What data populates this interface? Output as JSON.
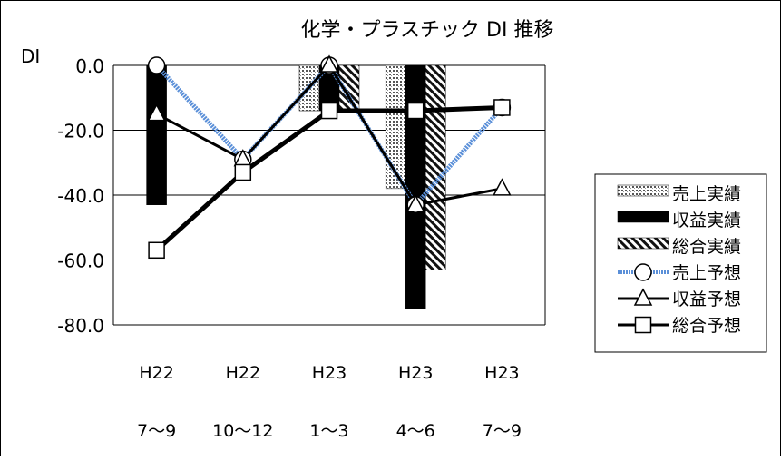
{
  "chart_data": {
    "type": "bar",
    "title": "化学・プラスチック DI 推移",
    "ylabel": "DI",
    "ylim": [
      -80,
      0
    ],
    "yticks": [
      0,
      -20,
      -40,
      -60,
      -80
    ],
    "ytick_labels": [
      "0.0",
      "-20.0",
      "-40.0",
      "-60.0",
      "-80.0"
    ],
    "grid": true,
    "legend_position": "right",
    "categories": [
      {
        "top": "H22",
        "bottom": "7～9"
      },
      {
        "top": "H22",
        "bottom": "10～12"
      },
      {
        "top": "H23",
        "bottom": "1～3"
      },
      {
        "top": "H23",
        "bottom": "4～6"
      },
      {
        "top": "H23",
        "bottom": "7～9"
      }
    ],
    "bar_series": [
      {
        "name": "売上実績",
        "pattern": "dots",
        "values": [
          null,
          null,
          -14,
          -38,
          null
        ]
      },
      {
        "name": "収益実績",
        "pattern": "solid",
        "values": [
          -43,
          null,
          -14,
          -75,
          null
        ]
      },
      {
        "name": "総合実績",
        "pattern": "hatch",
        "values": [
          null,
          null,
          -14,
          -63,
          null
        ]
      }
    ],
    "line_series": [
      {
        "name": "売上予想",
        "marker": "circle",
        "color": "#8fb4ea",
        "values": [
          0,
          -29,
          0,
          -43,
          -13
        ]
      },
      {
        "name": "収益予想",
        "marker": "triangle",
        "color": "#000000",
        "values": [
          -15,
          -29,
          0,
          -43,
          -38
        ]
      },
      {
        "name": "総合予想",
        "marker": "square",
        "color": "#000000",
        "values": [
          -57,
          -33,
          -14,
          -14,
          -13
        ]
      }
    ]
  }
}
